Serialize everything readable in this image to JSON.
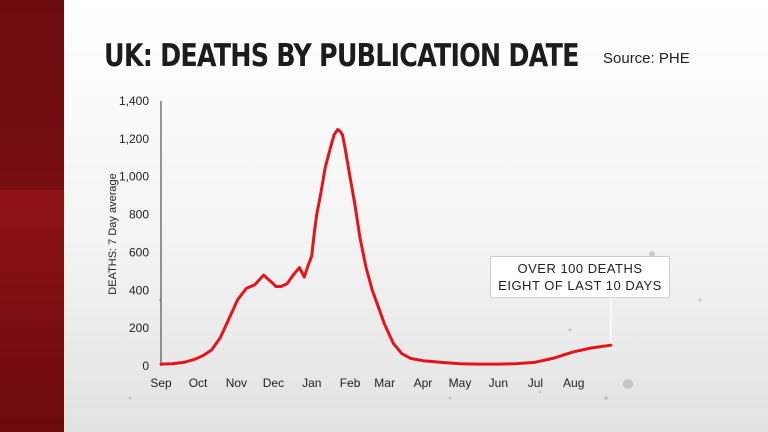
{
  "header": {
    "title": "UK: DEATHS BY PUBLICATION DATE",
    "source": "Source: PHE"
  },
  "annotation": {
    "line1": "OVER 100 DEATHS",
    "line2": "EIGHT OF LAST 10 DAYS"
  },
  "colors": {
    "series": "#e4141b",
    "band": "#7a0d10"
  },
  "chart_data": {
    "type": "line",
    "title": "UK: DEATHS BY PUBLICATION DATE",
    "ylabel": "DEATHS: 7 Day average",
    "xlabel": "",
    "ylim": [
      0,
      1400
    ],
    "yticks": [
      0,
      200,
      400,
      600,
      800,
      1000,
      1200,
      1400
    ],
    "ytick_labels": [
      "0",
      "200",
      "400",
      "600",
      "800",
      "1,000",
      "1,200",
      "1,400"
    ],
    "xticks": [
      "Sep",
      "Oct",
      "Nov",
      "Dec",
      "Jan",
      "Feb",
      "Mar",
      "Apr",
      "May",
      "Jun",
      "Jul",
      "Aug"
    ],
    "grid": false,
    "legend": "none",
    "series": [
      {
        "x": [
          "2020-09-01",
          "2020-09-10",
          "2020-09-20",
          "2020-09-28",
          "2020-10-05",
          "2020-10-12",
          "2020-10-19",
          "2020-10-26",
          "2020-11-02",
          "2020-11-09",
          "2020-11-16",
          "2020-11-23",
          "2020-11-30",
          "2020-12-03",
          "2020-12-07",
          "2020-12-12",
          "2020-12-17",
          "2020-12-22",
          "2020-12-26",
          "2020-12-29",
          "2021-01-01",
          "2021-01-03",
          "2021-01-05",
          "2021-01-08",
          "2021-01-12",
          "2021-01-16",
          "2021-01-19",
          "2021-01-22",
          "2021-01-24",
          "2021-01-26",
          "2021-01-28",
          "2021-02-01",
          "2021-02-05",
          "2021-02-09",
          "2021-02-14",
          "2021-02-19",
          "2021-02-24",
          "2021-03-01",
          "2021-03-08",
          "2021-03-15",
          "2021-03-22",
          "2021-04-01",
          "2021-04-15",
          "2021-05-01",
          "2021-05-15",
          "2021-06-01",
          "2021-06-15",
          "2021-07-01",
          "2021-07-15",
          "2021-08-01",
          "2021-08-15",
          "2021-08-31"
        ],
        "y": [
          10,
          12,
          20,
          35,
          55,
          85,
          150,
          250,
          350,
          410,
          430,
          480,
          440,
          420,
          420,
          435,
          480,
          520,
          470,
          530,
          580,
          700,
          800,
          900,
          1050,
          1150,
          1220,
          1250,
          1240,
          1220,
          1150,
          1000,
          850,
          680,
          520,
          400,
          310,
          220,
          120,
          65,
          40,
          28,
          20,
          12,
          10,
          10,
          12,
          20,
          40,
          75,
          95,
          110
        ]
      }
    ]
  }
}
